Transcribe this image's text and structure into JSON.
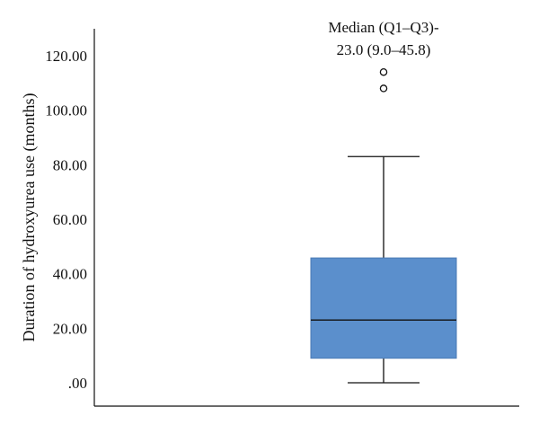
{
  "chart_data": {
    "type": "box",
    "ylabel": "Duration of hydroxyurea use (months)",
    "xlabel": "",
    "ylim": [
      0,
      130
    ],
    "yticks": [
      ".00",
      "20.00",
      "40.00",
      "60.00",
      "80.00",
      "100.00",
      "120.00"
    ],
    "ytick_values": [
      0,
      20,
      40,
      60,
      80,
      100,
      120
    ],
    "grid": false,
    "annotation": [
      "Median (Q1–Q3)-",
      "23.0 (9.0–45.8)"
    ],
    "box": {
      "whisker_low": 0,
      "q1": 9.0,
      "median": 23.0,
      "q3": 45.8,
      "whisker_high": 83,
      "outliers": [
        108,
        114
      ]
    },
    "colors": {
      "box_fill": "#5b8fcc",
      "box_stroke": "#4a7ab5",
      "line": "#111111"
    }
  }
}
